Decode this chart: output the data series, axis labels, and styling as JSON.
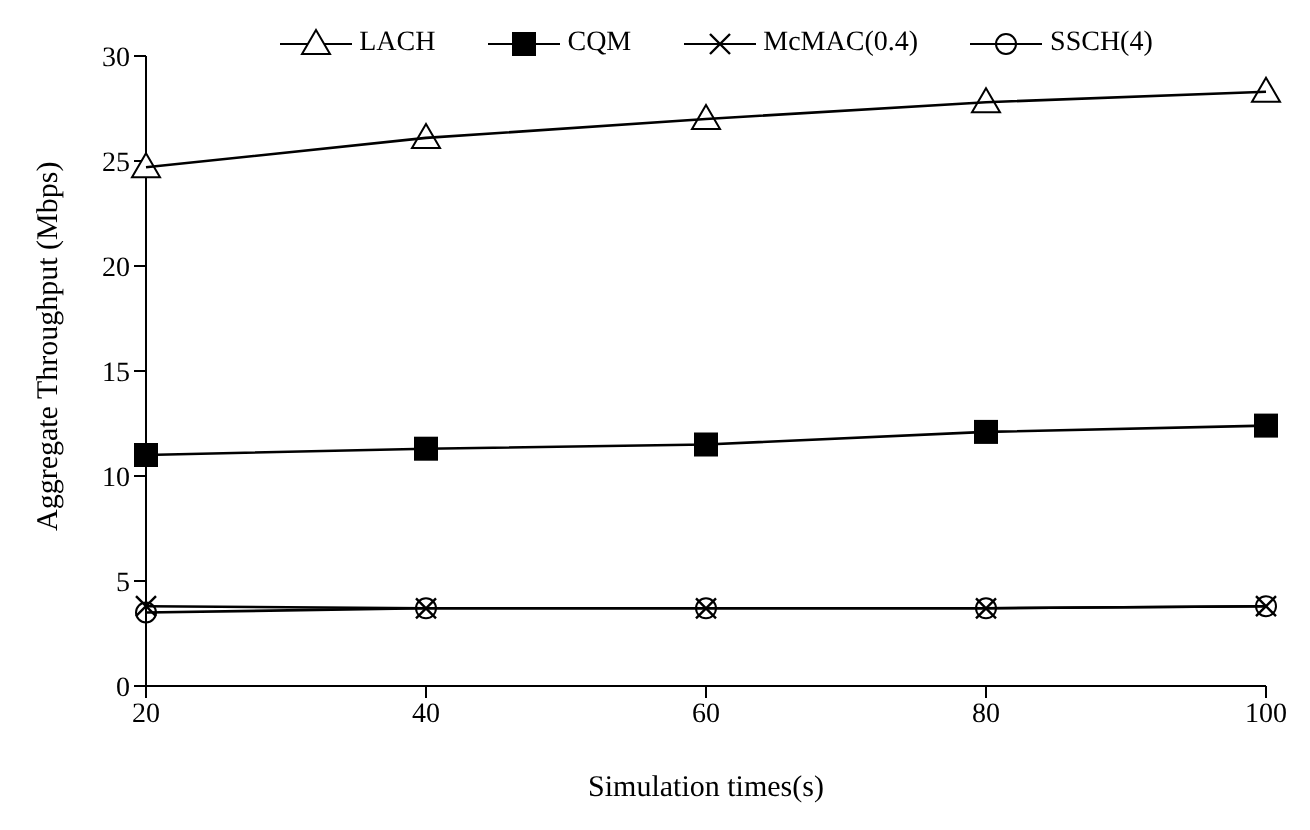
{
  "chart_data": {
    "type": "line",
    "xlabel": "Simulation times(s)",
    "ylabel": "Aggregate Throughput (Mbps)",
    "x": [
      20,
      40,
      60,
      80,
      100
    ],
    "series": [
      {
        "name": "LACH",
        "color": "#000000",
        "marker": "triangle",
        "values": [
          24.7,
          26.1,
          27.0,
          27.8,
          28.3
        ]
      },
      {
        "name": "CQM",
        "color": "#000000",
        "marker": "square",
        "values": [
          11.0,
          11.3,
          11.5,
          12.1,
          12.4
        ]
      },
      {
        "name": "McMAC(0.4)",
        "color": "#000000",
        "marker": "cross",
        "values": [
          3.8,
          3.7,
          3.7,
          3.7,
          3.8
        ]
      },
      {
        "name": "SSCH(4)",
        "color": "#000000",
        "marker": "circle",
        "values": [
          3.5,
          3.7,
          3.7,
          3.7,
          3.8
        ]
      }
    ],
    "xlim": [
      20,
      100
    ],
    "xticks": [
      20,
      40,
      60,
      80,
      100
    ],
    "ylim": [
      0,
      30
    ],
    "yticks": [
      0,
      5,
      10,
      15,
      20,
      25,
      30
    ],
    "grid": false,
    "legend": "top"
  }
}
